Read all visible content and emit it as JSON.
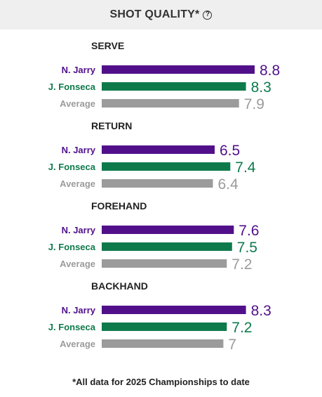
{
  "header": {
    "title": "SHOT QUALITY*",
    "info_icon": "question-circle-icon"
  },
  "footnote": "*All data for 2025 Championships to date",
  "colors": {
    "jarry": "#51108a",
    "fonseca": "#0e7a4c",
    "average": "#9b9b9b"
  },
  "chart_data": {
    "type": "bar",
    "orientation": "horizontal",
    "series": [
      {
        "name": "N. Jarry",
        "color": "#51108a"
      },
      {
        "name": "J. Fonseca",
        "color": "#0e7a4c"
      },
      {
        "name": "Average",
        "color": "#9b9b9b"
      }
    ],
    "groups": [
      {
        "label": "SERVE",
        "values": [
          8.8,
          8.3,
          7.9
        ],
        "display": [
          "8.8",
          "8.3",
          "7.9"
        ]
      },
      {
        "label": "RETURN",
        "values": [
          6.5,
          7.4,
          6.4
        ],
        "display": [
          "6.5",
          "7.4",
          "6.4"
        ]
      },
      {
        "label": "FOREHAND",
        "values": [
          7.6,
          7.5,
          7.2
        ],
        "display": [
          "7.6",
          "7.5",
          "7.2"
        ]
      },
      {
        "label": "BACKHAND",
        "values": [
          8.3,
          7.2,
          7.0
        ],
        "display": [
          "8.3",
          "7.2",
          "7"
        ]
      }
    ],
    "xlim": [
      0,
      10
    ]
  }
}
